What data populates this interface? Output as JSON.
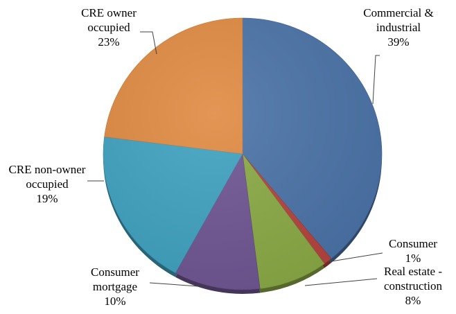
{
  "chart_data": {
    "type": "pie",
    "title": "",
    "start_angle_deg": 0,
    "direction": "clockwise",
    "slices": [
      {
        "name": "Commercial & industrial",
        "label_lines": [
          "Commercial &",
          "industrial"
        ],
        "percent_label": "39%",
        "value": 39,
        "color": "#4A73A8"
      },
      {
        "name": "Consumer",
        "label_lines": [
          "Consumer"
        ],
        "percent_label": "1%",
        "value": 1,
        "color": "#B5433E"
      },
      {
        "name": "Real estate - construction",
        "label_lines": [
          "Real estate -",
          "construction"
        ],
        "percent_label": "8%",
        "value": 8,
        "color": "#8BAA45"
      },
      {
        "name": "Consumer mortgage",
        "label_lines": [
          "Consumer",
          "mortgage"
        ],
        "percent_label": "10%",
        "value": 10,
        "color": "#6F5593"
      },
      {
        "name": "CRE non-owner occupied",
        "label_lines": [
          "CRE non-owner",
          "occupied"
        ],
        "percent_label": "19%",
        "value": 19,
        "color": "#3FA2C0"
      },
      {
        "name": "CRE owner occupied",
        "label_lines": [
          "CRE owner",
          "occupied"
        ],
        "percent_label": "23%",
        "value": 23,
        "color": "#E08A42"
      }
    ]
  }
}
